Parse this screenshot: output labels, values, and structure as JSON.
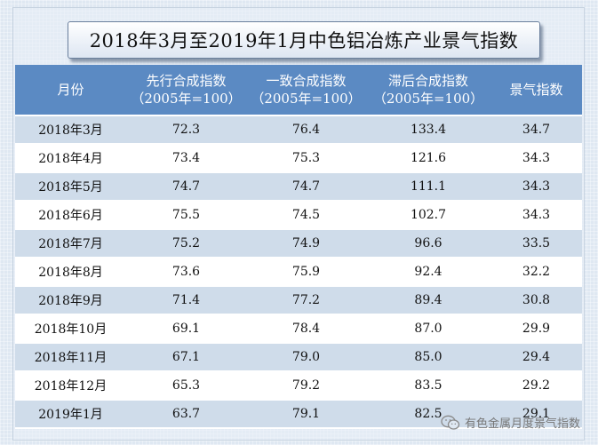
{
  "title": "2018年3月至2019年1月中色铝冶炼产业景气指数",
  "table": {
    "headers": [
      {
        "line1": "月份",
        "line2": ""
      },
      {
        "line1": "先行合成指数",
        "line2": "（2005年=100）"
      },
      {
        "line1": "一致合成指数",
        "line2": "（2005年=100）"
      },
      {
        "line1": "滞后合成指数",
        "line2": "（2005年=100）"
      },
      {
        "line1": "景气指数",
        "line2": ""
      }
    ],
    "rows": [
      [
        "2018年3月",
        "72.3",
        "76.4",
        "133.4",
        "34.7"
      ],
      [
        "2018年4月",
        "73.4",
        "75.3",
        "121.6",
        "34.3"
      ],
      [
        "2018年5月",
        "74.7",
        "74.7",
        "111.1",
        "34.3"
      ],
      [
        "2018年6月",
        "75.5",
        "74.5",
        "102.7",
        "34.3"
      ],
      [
        "2018年7月",
        "75.2",
        "74.9",
        "96.6",
        "33.5"
      ],
      [
        "2018年8月",
        "73.6",
        "75.9",
        "92.4",
        "32.2"
      ],
      [
        "2018年9月",
        "71.4",
        "77.2",
        "89.4",
        "30.8"
      ],
      [
        "2018年10月",
        "69.1",
        "78.4",
        "87.0",
        "29.9"
      ],
      [
        "2018年11月",
        "67.1",
        "79.0",
        "85.0",
        "29.4"
      ],
      [
        "2018年12月",
        "65.3",
        "79.2",
        "83.5",
        "29.2"
      ],
      [
        "2019年1月",
        "63.7",
        "79.1",
        "82.5",
        "29.1"
      ]
    ]
  },
  "footer": {
    "icon": "wechat-icon",
    "text": "有色金属月度景气指数"
  }
}
